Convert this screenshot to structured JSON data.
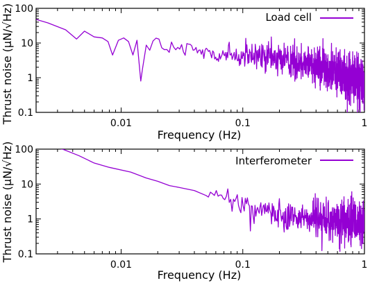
{
  "colors": {
    "series": "#9400d3",
    "axis": "#000000",
    "background": "#ffffff"
  },
  "chart_data": [
    {
      "type": "line",
      "xscale": "log",
      "yscale": "log",
      "xlim": [
        0.002,
        1
      ],
      "ylim": [
        0.1,
        100
      ],
      "xlabel": "Frequency (Hz)",
      "ylabel": "Thrust noise (μN/√Hz)",
      "xtick_labels": [
        "0.01",
        "0.1",
        "1"
      ],
      "ytick_labels": [
        "0.1",
        "1",
        "10",
        "100"
      ],
      "legend_position": "top-right",
      "series": [
        {
          "name": "Load cell",
          "anchors": {
            "x": [
              0.002,
              0.0025,
              0.0035,
              0.0043,
              0.005,
              0.006,
              0.007,
              0.0078,
              0.0085,
              0.0095,
              0.0105,
              0.0115,
              0.0125,
              0.0135,
              0.0145,
              0.0155,
              0.017,
              0.019,
              0.021,
              0.025,
              0.03,
              0.04,
              0.06,
              0.1,
              0.2,
              0.4,
              0.6,
              0.8,
              1.0
            ],
            "y": [
              48,
              38,
              24,
              13,
              22,
              15,
              14,
              11,
              4.5,
              12,
              14,
              11,
              4.5,
              12,
              0.8,
              11,
              6,
              13,
              8,
              7,
              6,
              6,
              5,
              4,
              3.5,
              2.5,
              1.5,
              1.0,
              0.8
            ]
          },
          "noise_from_hz": 0.015,
          "points_per_decade_at_1hz": 900
        },
        {
          "name": "Interferometer",
          "anchors": {
            "x": [
              0.002,
              0.0033,
              0.0045,
              0.006,
              0.008,
              0.012,
              0.016,
              0.02,
              0.025,
              0.03,
              0.04,
              0.05,
              0.07,
              0.1,
              0.13,
              0.2,
              0.3,
              0.5,
              0.7,
              1.0
            ],
            "y": [
              130,
              100,
              65,
              40,
              30,
              22,
              15,
              12,
              9,
              8,
              6.5,
              5,
              4,
              2.5,
              2,
              1.5,
              1.2,
              0.9,
              0.8,
              0.8
            ]
          },
          "noise_from_hz": 0.05,
          "points_per_decade_at_1hz": 450
        }
      ]
    }
  ]
}
